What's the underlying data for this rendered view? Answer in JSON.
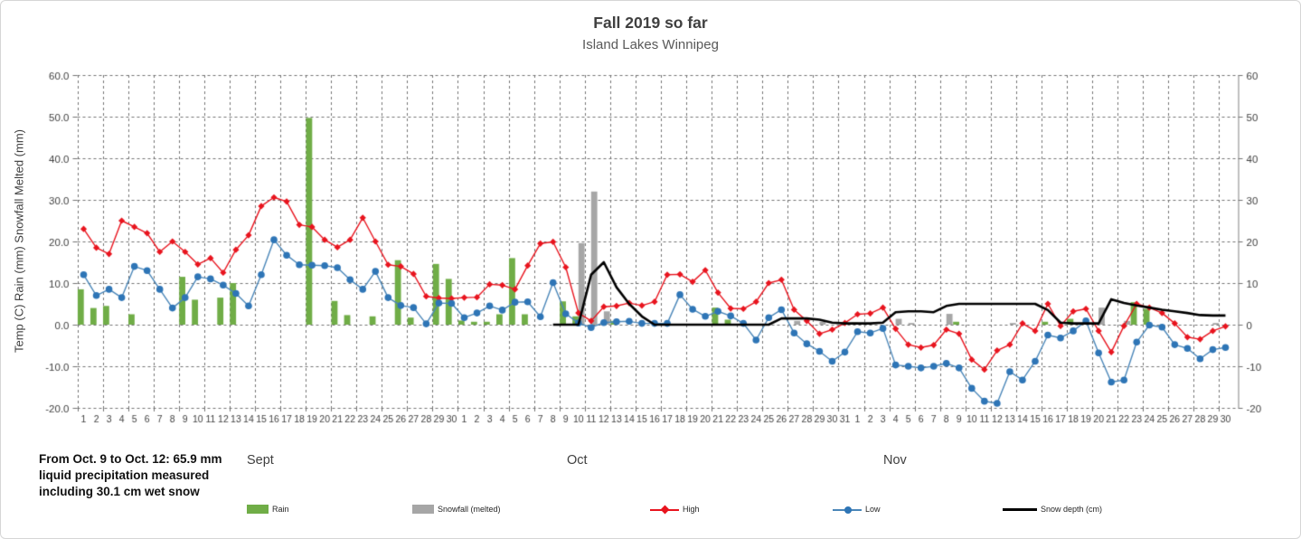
{
  "header": {
    "title": "Fall 2019 so far",
    "subtitle": "Island Lakes Winnipeg"
  },
  "annotation": {
    "line1": "From Oct. 9 to Oct. 12: 65.9 mm",
    "line2": "liquid precipitation measured",
    "line3": "including 30.1 cm wet snow"
  },
  "axes": {
    "y_label": "Temp (C) Rain (mm)  Snowfall Melted (mm)",
    "left_ticks": [
      "60.0",
      "50.0",
      "40.0",
      "30.0",
      "20.0",
      "10.0",
      "0.0",
      "-10.0",
      "-20.0"
    ],
    "right_ticks": [
      "60",
      "50",
      "40",
      "30",
      "20",
      "10",
      "0",
      "-10",
      "-20"
    ]
  },
  "colors": {
    "rain": "#70AD47",
    "snowfall": "#A6A6A6",
    "high": "#E8141E",
    "low_marker": "#2E75B6",
    "low_line": "#4A86B8",
    "snow_depth": "#000000",
    "grid": "#737373",
    "axis_text": "#404040"
  },
  "chart_data": {
    "type": "combo (bar + line)",
    "ylim": [
      -20,
      60
    ],
    "grid": "dashed, horizontal every 10 units, vertical every 2 days",
    "legend_position": "bottom",
    "months": [
      {
        "name": "Sept",
        "days": 30
      },
      {
        "name": "Oct",
        "days": 31
      },
      {
        "name": "Nov",
        "days": 30
      }
    ],
    "series": [
      {
        "name": "Rain",
        "type": "bar",
        "color": "#70AD47",
        "values": [
          8.5,
          4,
          4.5,
          null,
          2.5,
          null,
          null,
          null,
          11.5,
          6,
          null,
          6.5,
          10,
          null,
          null,
          null,
          null,
          null,
          49.7,
          null,
          5.7,
          2.3,
          null,
          2,
          null,
          15.5,
          1.7,
          null,
          14.6,
          11,
          1,
          0.7,
          0.7,
          2.5,
          16,
          2.5,
          null,
          null,
          5.6,
          2,
          null,
          null,
          0.9,
          null,
          null,
          null,
          null,
          null,
          null,
          null,
          4.1,
          1.2,
          null,
          null,
          null,
          null,
          null,
          null,
          null,
          null,
          null,
          0.5,
          null,
          null,
          null,
          null,
          null,
          null,
          null,
          0.7,
          null,
          null,
          null,
          null,
          null,
          null,
          0.7,
          null,
          1.4,
          null,
          null,
          null,
          null,
          5.4,
          3.8,
          null,
          null,
          null,
          null,
          null,
          null
        ]
      },
      {
        "name": "Snowfall (melted)",
        "type": "bar",
        "color": "#A6A6A6",
        "values": [
          null,
          null,
          null,
          null,
          null,
          null,
          null,
          null,
          null,
          null,
          null,
          null,
          null,
          null,
          null,
          null,
          null,
          null,
          null,
          null,
          null,
          null,
          null,
          null,
          null,
          null,
          null,
          null,
          null,
          null,
          null,
          null,
          null,
          null,
          null,
          null,
          null,
          null,
          null,
          19.6,
          32,
          3.2,
          null,
          null,
          null,
          null,
          null,
          null,
          null,
          null,
          null,
          null,
          null,
          null,
          null,
          null,
          0.9,
          null,
          0.7,
          null,
          0.4,
          null,
          null,
          null,
          1.4,
          0.4,
          null,
          null,
          2.6,
          null,
          null,
          null,
          null,
          0.4,
          null,
          null,
          null,
          null,
          null,
          null,
          4.1,
          null,
          0.9,
          null,
          null,
          null,
          null,
          null,
          null,
          0.4,
          null
        ]
      },
      {
        "name": "High",
        "type": "line",
        "marker": "diamond",
        "color": "#E8141E",
        "values": [
          23,
          18.5,
          17,
          25,
          23.5,
          22,
          17.5,
          20,
          17.5,
          14.5,
          16,
          12.5,
          18,
          21.5,
          28.5,
          30.6,
          29.6,
          24,
          23.5,
          20.4,
          18.6,
          20.4,
          25.7,
          20,
          14.4,
          14,
          12.2,
          6.8,
          6.4,
          6.3,
          6.5,
          6.6,
          9.7,
          9.5,
          8.5,
          14.2,
          19.5,
          19.9,
          13.8,
          2.8,
          0.9,
          4.3,
          4.5,
          5.2,
          4.6,
          5.5,
          12,
          12.1,
          10.3,
          13.1,
          7.7,
          3.9,
          3.8,
          5.5,
          10,
          10.8,
          3.6,
          0.9,
          -2.2,
          -1.2,
          0.4,
          2.5,
          2.7,
          4.1,
          -1,
          -4.8,
          -5.5,
          -4.9,
          -1.2,
          -2.2,
          -8.4,
          -10.8,
          -6.2,
          -4.8,
          0.3,
          -1.5,
          5,
          -0.3,
          3.2,
          3.8,
          -1.5,
          -6.6,
          -0.3,
          5,
          4.1,
          2.8,
          0.3,
          -3,
          -3.5,
          -1.5,
          -0.4
        ]
      },
      {
        "name": "Low",
        "type": "line",
        "marker": "circle",
        "color": "#2E75B6",
        "values": [
          12,
          7,
          8.5,
          6.5,
          14,
          13,
          8.5,
          4,
          6.5,
          11.5,
          11,
          9.5,
          7.5,
          4.5,
          12,
          20.4,
          16.7,
          14.4,
          14.3,
          14.2,
          13.7,
          10.8,
          8.5,
          12.8,
          6.5,
          4.6,
          4.1,
          0.2,
          5.2,
          5.1,
          1.7,
          2.8,
          4.5,
          3.5,
          5.4,
          5.5,
          1.9,
          10.1,
          2.6,
          0.4,
          -0.7,
          0.5,
          0.7,
          0.8,
          0.3,
          0.3,
          0.3,
          7.2,
          3.7,
          2,
          3.2,
          2.1,
          0.3,
          -3.7,
          1.7,
          3.6,
          -2,
          -4.6,
          -6.4,
          -8.8,
          -6.6,
          -1.7,
          -2,
          -0.9,
          -9.7,
          -10,
          -10.4,
          -10,
          -9.3,
          -10.4,
          -15.3,
          -18.4,
          -18.9,
          -11.3,
          -13.3,
          -8.8,
          -2.5,
          -3.2,
          -1.5,
          0.9,
          -6.8,
          -13.8,
          -13.3,
          -4.2,
          -0.1,
          -0.6,
          -4.8,
          -5.7,
          -8.2,
          -6,
          -5.5
        ]
      },
      {
        "name": "Snow depth (cm)",
        "type": "line",
        "marker": "none",
        "color": "#000000",
        "values": [
          null,
          null,
          null,
          null,
          null,
          null,
          null,
          null,
          null,
          null,
          null,
          null,
          null,
          null,
          null,
          null,
          null,
          null,
          null,
          null,
          null,
          null,
          null,
          null,
          null,
          null,
          null,
          null,
          null,
          null,
          null,
          null,
          null,
          null,
          null,
          null,
          null,
          0,
          0,
          0,
          12,
          15,
          9,
          5,
          2,
          0,
          0,
          0,
          0,
          0,
          0,
          0,
          0,
          0,
          0,
          1.5,
          1.5,
          1.5,
          1.2,
          0.5,
          0.3,
          0.3,
          0.3,
          0.5,
          3,
          3.2,
          3.2,
          3,
          4.5,
          5,
          5,
          5,
          5,
          5,
          5,
          5,
          3.5,
          0.5,
          0.3,
          0.3,
          0.3,
          6.1,
          5.2,
          4.6,
          4.1,
          3.6,
          3.2,
          2.8,
          2.3,
          2.2,
          2.2
        ]
      }
    ]
  }
}
